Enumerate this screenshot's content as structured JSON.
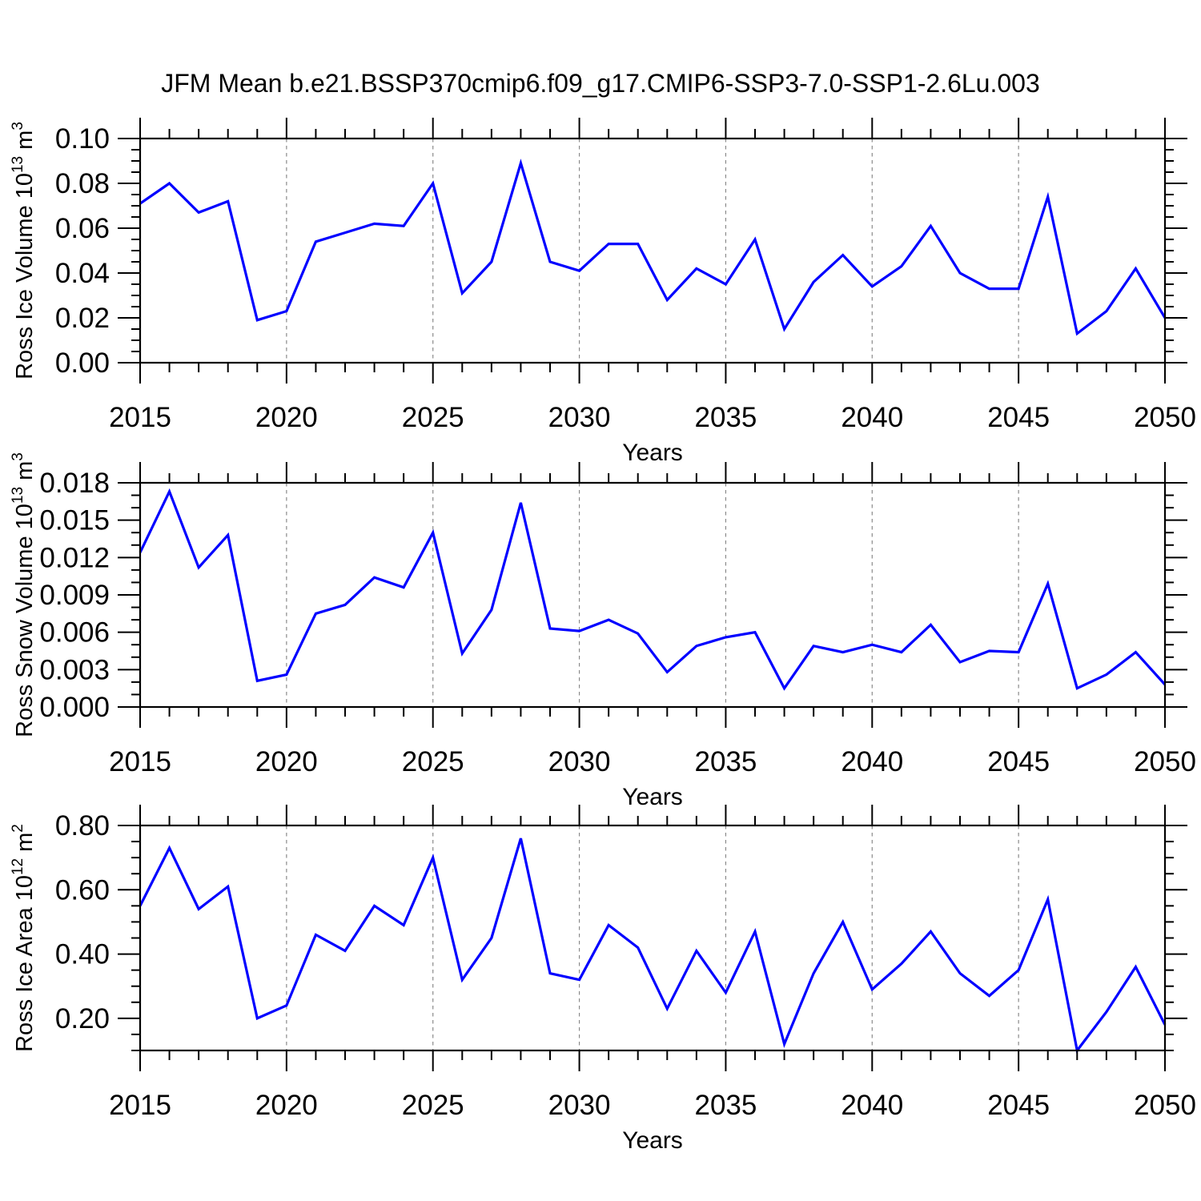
{
  "figure_title": "JFM Mean b.e21.BSSP370cmip6.f09_g17.CMIP6-SSP3-7.0-SSP1-2.6Lu.003",
  "line_color": "#0000ff",
  "chart_data": [
    {
      "id": "ross-ice-volume",
      "type": "line",
      "title": "",
      "ylabel": "Ross Ice Volume 10^13^ m^3^",
      "xlabel": "Years",
      "xlim": [
        2015,
        2050
      ],
      "ylim": [
        0.0,
        0.1
      ],
      "grid_on": true,
      "grid_x": [
        2020,
        2025,
        2030,
        2035,
        2040,
        2045
      ],
      "xticks": {
        "values": [
          2015,
          2020,
          2025,
          2030,
          2035,
          2040,
          2045,
          2050
        ],
        "labels": [
          "2015",
          "2020",
          "2025",
          "2030",
          "2035",
          "2040",
          "2045",
          "2050"
        ]
      },
      "yticks": {
        "values": [
          0.0,
          0.02,
          0.04,
          0.06,
          0.08,
          0.1
        ],
        "labels": [
          "0.00",
          "0.02",
          "0.04",
          "0.06",
          "0.08",
          "0.10"
        ]
      },
      "y_minor_step": 0.005,
      "x": [
        2015,
        2016,
        2017,
        2018,
        2019,
        2020,
        2021,
        2022,
        2023,
        2024,
        2025,
        2026,
        2027,
        2028,
        2029,
        2030,
        2031,
        2032,
        2033,
        2034,
        2035,
        2036,
        2037,
        2038,
        2039,
        2040,
        2041,
        2042,
        2043,
        2044,
        2045,
        2046,
        2047,
        2048,
        2049,
        2050
      ],
      "values": [
        0.071,
        0.08,
        0.067,
        0.072,
        0.019,
        0.023,
        0.054,
        0.058,
        0.062,
        0.061,
        0.08,
        0.031,
        0.045,
        0.089,
        0.045,
        0.041,
        0.053,
        0.053,
        0.028,
        0.042,
        0.035,
        0.055,
        0.015,
        0.036,
        0.048,
        0.034,
        0.043,
        0.061,
        0.04,
        0.033,
        0.033,
        0.074,
        0.013,
        0.023,
        0.042,
        0.02
      ]
    },
    {
      "id": "ross-snow-volume",
      "type": "line",
      "title": "",
      "ylabel": "Ross Snow Volume 10^13^ m^3^",
      "xlabel": "Years",
      "xlim": [
        2015,
        2050
      ],
      "ylim": [
        0.0,
        0.018
      ],
      "grid_on": true,
      "grid_x": [
        2020,
        2025,
        2030,
        2035,
        2040,
        2045
      ],
      "xticks": {
        "values": [
          2015,
          2020,
          2025,
          2030,
          2035,
          2040,
          2045,
          2050
        ],
        "labels": [
          "2015",
          "2020",
          "2025",
          "2030",
          "2035",
          "2040",
          "2045",
          "2050"
        ]
      },
      "yticks": {
        "values": [
          0.0,
          0.003,
          0.006,
          0.009,
          0.012,
          0.015,
          0.018
        ],
        "labels": [
          "0.000",
          "0.003",
          "0.006",
          "0.009",
          "0.012",
          "0.015",
          "0.018"
        ]
      },
      "y_minor_step": 0.001,
      "x": [
        2015,
        2016,
        2017,
        2018,
        2019,
        2020,
        2021,
        2022,
        2023,
        2024,
        2025,
        2026,
        2027,
        2028,
        2029,
        2030,
        2031,
        2032,
        2033,
        2034,
        2035,
        2036,
        2037,
        2038,
        2039,
        2040,
        2041,
        2042,
        2043,
        2044,
        2045,
        2046,
        2047,
        2048,
        2049,
        2050
      ],
      "values": [
        0.0124,
        0.0173,
        0.0112,
        0.0138,
        0.0021,
        0.0026,
        0.0075,
        0.0082,
        0.0104,
        0.0096,
        0.014,
        0.0043,
        0.0078,
        0.0164,
        0.0063,
        0.0061,
        0.007,
        0.0059,
        0.0028,
        0.0049,
        0.0056,
        0.006,
        0.0015,
        0.0049,
        0.0044,
        0.005,
        0.0044,
        0.0066,
        0.0036,
        0.0045,
        0.0044,
        0.0099,
        0.0015,
        0.0026,
        0.0044,
        0.0018
      ]
    },
    {
      "id": "ross-ice-area",
      "type": "line",
      "title": "",
      "ylabel": "Ross Ice Area 10^12^ m^2^",
      "xlabel": "Years",
      "xlim": [
        2015,
        2050
      ],
      "ylim": [
        0.1,
        0.8
      ],
      "grid_on": true,
      "grid_x": [
        2020,
        2025,
        2030,
        2035,
        2040,
        2045
      ],
      "xticks": {
        "values": [
          2015,
          2020,
          2025,
          2030,
          2035,
          2040,
          2045,
          2050
        ],
        "labels": [
          "2015",
          "2020",
          "2025",
          "2030",
          "2035",
          "2040",
          "2045",
          "2050"
        ]
      },
      "yticks": {
        "values": [
          0.2,
          0.4,
          0.6,
          0.8
        ],
        "labels": [
          "0.20",
          "0.40",
          "0.60",
          "0.80"
        ]
      },
      "y_minor_step": 0.05,
      "x": [
        2015,
        2016,
        2017,
        2018,
        2019,
        2020,
        2021,
        2022,
        2023,
        2024,
        2025,
        2026,
        2027,
        2028,
        2029,
        2030,
        2031,
        2032,
        2033,
        2034,
        2035,
        2036,
        2037,
        2038,
        2039,
        2040,
        2041,
        2042,
        2043,
        2044,
        2045,
        2046,
        2047,
        2048,
        2049,
        2050
      ],
      "values": [
        0.55,
        0.73,
        0.54,
        0.61,
        0.2,
        0.24,
        0.46,
        0.41,
        0.55,
        0.49,
        0.7,
        0.32,
        0.45,
        0.76,
        0.34,
        0.32,
        0.49,
        0.42,
        0.23,
        0.41,
        0.28,
        0.47,
        0.12,
        0.34,
        0.5,
        0.29,
        0.37,
        0.47,
        0.34,
        0.27,
        0.35,
        0.57,
        0.1,
        0.22,
        0.36,
        0.18
      ]
    }
  ]
}
